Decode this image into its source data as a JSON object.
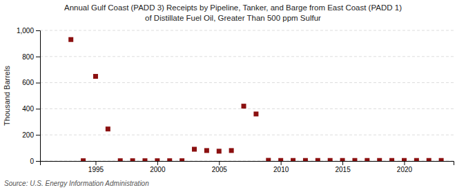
{
  "chart_data": {
    "type": "scatter",
    "title": "Annual Gulf Coast (PADD 3) Receipts by Pipeline, Tanker, and Barge from East Coast (PADD 1)",
    "subtitle": "of Distillate Fuel Oil, Greater Than 500 ppm Sulfur",
    "y_label": "Thousand Barrels",
    "annotations": [
      "Source: U.S. Energy Information Administration"
    ],
    "x": [
      1993,
      1994,
      1995,
      1996,
      1997,
      1998,
      1999,
      2000,
      2001,
      2002,
      2003,
      2004,
      2005,
      2006,
      2007,
      2008,
      2009,
      2010,
      2011,
      2012,
      2013,
      2014,
      2015,
      2016,
      2017,
      2018,
      2019,
      2020,
      2021,
      2022,
      2023
    ],
    "values": [
      930,
      2,
      648,
      245,
      2,
      2,
      2,
      2,
      2,
      2,
      90,
      80,
      75,
      80,
      420,
      360,
      5,
      4,
      4,
      4,
      4,
      4,
      4,
      4,
      4,
      4,
      4,
      4,
      4,
      4,
      4
    ],
    "color": "#8b1010",
    "marker": "square",
    "xlim": [
      1990.5,
      2024
    ],
    "xticks": [
      1995,
      2000,
      2005,
      2010,
      2015,
      2020
    ],
    "ylim": [
      0,
      1000
    ],
    "yticks": [
      0,
      200,
      400,
      600,
      800,
      {
        "value": 1000,
        "label": "1,000"
      }
    ],
    "grid": true
  }
}
